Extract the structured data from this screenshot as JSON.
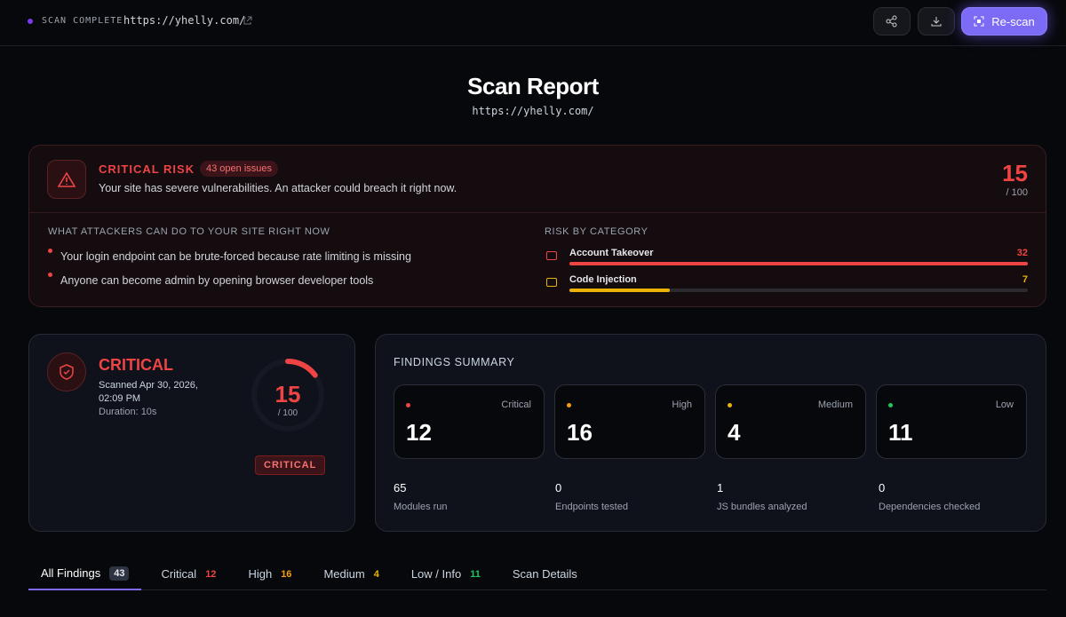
{
  "header": {
    "status": "SCAN COMPLETE",
    "url": "https://yhelly.com/",
    "rescan": "Re-scan"
  },
  "title": "Scan Report",
  "subtitle": "https://yhelly.com/",
  "risk_banner": {
    "level": "CRITICAL RISK",
    "badge": "43 open issues",
    "message": "Your site has severe vulnerabilities. An attacker could breach it right now.",
    "score": 15,
    "score_max": "/ 100",
    "attacks_title": "WHAT ATTACKERS CAN DO TO YOUR SITE RIGHT NOW",
    "attacks": [
      "Your login endpoint can be brute-forced because rate limiting is missing",
      "Anyone can become admin by opening browser developer tools"
    ],
    "categories_title": "RISK BY CATEGORY",
    "categories": [
      {
        "name": "Account Takeover",
        "value": 32,
        "color": "#ef4444"
      },
      {
        "name": "Code Injection",
        "value": 7,
        "color": "#eab308"
      }
    ]
  },
  "score_card": {
    "level": "CRITICAL",
    "scanned": "Scanned Apr 30, 2026, 02:09 PM",
    "duration": "Duration: 10s",
    "score": 15,
    "score_max": "/ 100",
    "badge": "CRITICAL"
  },
  "findings": {
    "title": "FINDINGS SUMMARY",
    "severities": [
      {
        "name": "Critical",
        "count": 12,
        "color": "#ef4444"
      },
      {
        "name": "High",
        "count": 16,
        "color": "#f59e0b"
      },
      {
        "name": "Medium",
        "count": 4,
        "color": "#eab308"
      },
      {
        "name": "Low",
        "count": 11,
        "color": "#22c55e"
      }
    ],
    "stats": [
      {
        "value": 65,
        "label": "Modules run"
      },
      {
        "value": 0,
        "label": "Endpoints tested"
      },
      {
        "value": 1,
        "label": "JS bundles analyzed"
      },
      {
        "value": 0,
        "label": "Dependencies checked"
      }
    ]
  },
  "tabs": [
    {
      "label": "All Findings",
      "count": 43
    },
    {
      "label": "Critical",
      "count": 12,
      "color": "#ef4444"
    },
    {
      "label": "High",
      "count": 16,
      "color": "#f59e0b"
    },
    {
      "label": "Medium",
      "count": 4,
      "color": "#eab308"
    },
    {
      "label": "Low / Info",
      "count": 11,
      "color": "#22c55e"
    },
    {
      "label": "Scan Details"
    }
  ]
}
